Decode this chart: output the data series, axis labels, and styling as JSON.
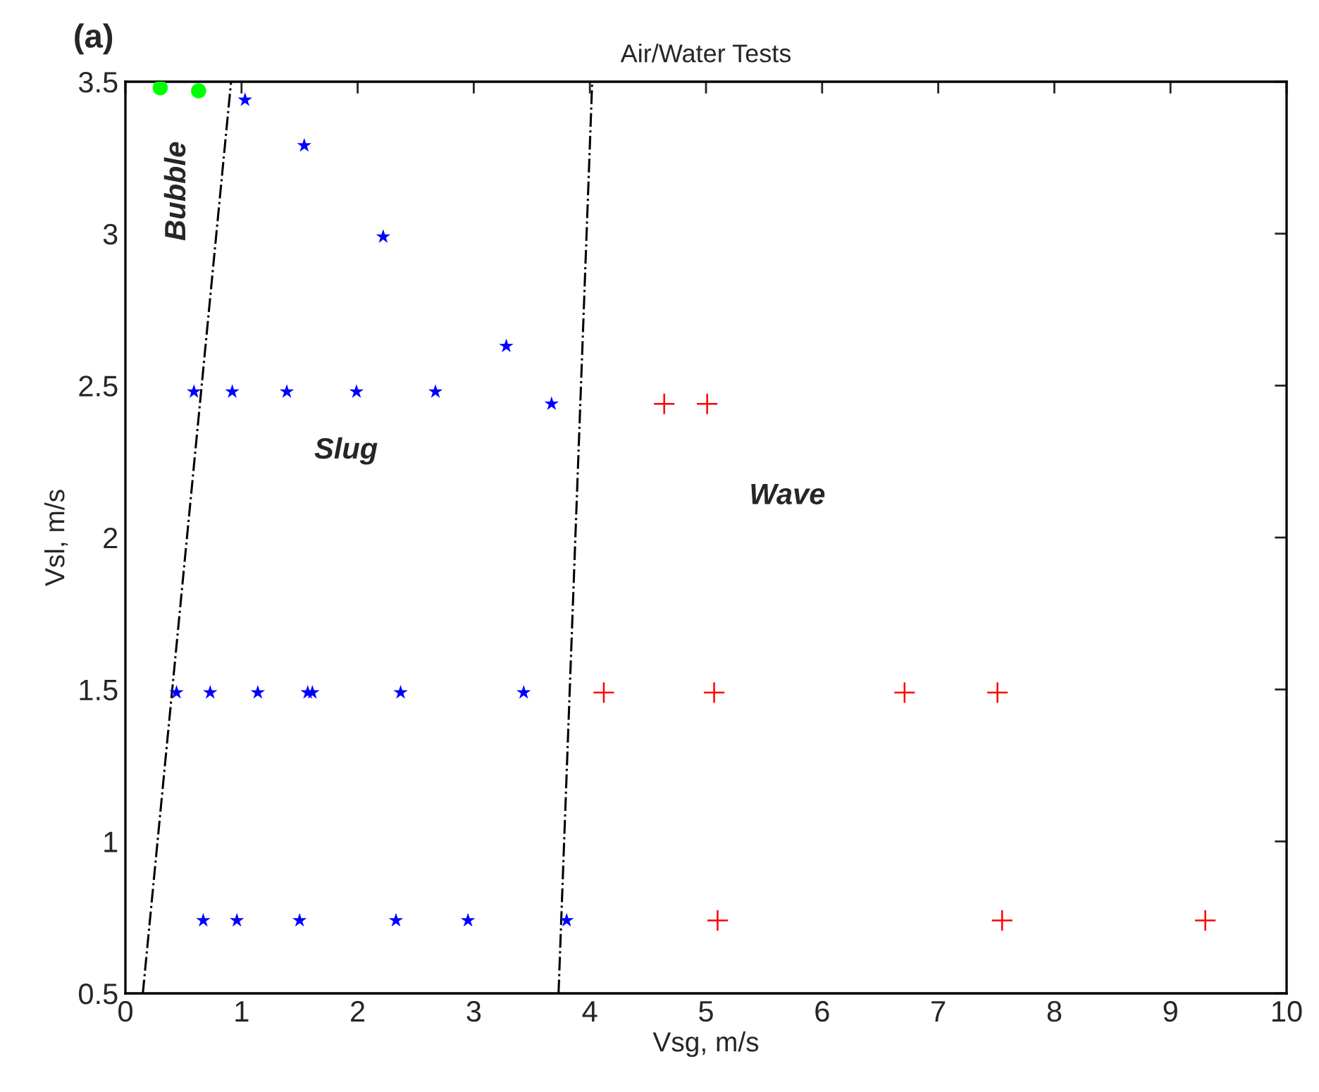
{
  "chart_data": {
    "type": "scatter",
    "title": "Air/Water Tests",
    "xlabel": "Vsg, m/s",
    "ylabel": "Vsl, m/s",
    "annotations": [
      "(a)",
      "Bubble",
      "Slug",
      "Wave"
    ],
    "series": [
      {
        "color": "#00ff00",
        "marker": "circle",
        "x": [
          0.3,
          0.63
        ],
        "values": [
          3.48,
          3.47
        ]
      },
      {
        "color": "#0000ff",
        "marker": "star",
        "x": [
          1.03,
          1.54,
          2.22,
          3.28,
          3.67,
          0.59,
          0.92,
          1.39,
          1.99,
          2.67,
          0.44,
          0.73,
          1.14,
          1.57,
          1.61,
          2.37,
          3.43,
          0.67,
          0.96,
          1.5,
          2.33,
          2.95,
          3.8
        ],
        "values": [
          3.44,
          3.29,
          2.99,
          2.63,
          2.44,
          2.48,
          2.48,
          2.48,
          2.48,
          2.48,
          1.49,
          1.49,
          1.49,
          1.49,
          1.49,
          1.49,
          1.49,
          0.74,
          0.74,
          0.74,
          0.74,
          0.74,
          0.74
        ]
      },
      {
        "color": "#ff0000",
        "marker": "cross",
        "x": [
          4.64,
          5.01,
          4.12,
          5.07,
          6.71,
          7.51,
          5.1,
          7.55,
          9.3
        ],
        "values": [
          2.44,
          2.44,
          1.49,
          1.49,
          1.49,
          1.49,
          0.74,
          0.74,
          0.74
        ]
      },
      {
        "type": "line",
        "color": "#000000",
        "line_style": "dashdot",
        "marker": "none",
        "x": [
          0.15,
          0.91
        ],
        "values": [
          0.5,
          3.5
        ]
      },
      {
        "type": "line",
        "color": "#000000",
        "line_style": "dashdot",
        "marker": "none",
        "x": [
          3.73,
          4.02
        ],
        "values": [
          0.5,
          3.5
        ]
      }
    ],
    "xlim": [
      0,
      10
    ],
    "ylim": [
      0.5,
      3.5
    ],
    "xticks": [
      0,
      1,
      2,
      3,
      4,
      5,
      6,
      7,
      8,
      9,
      10
    ],
    "yticks": [
      0.5,
      1,
      1.5,
      2,
      2.5,
      3,
      3.5
    ],
    "grid": false,
    "legend": false
  }
}
